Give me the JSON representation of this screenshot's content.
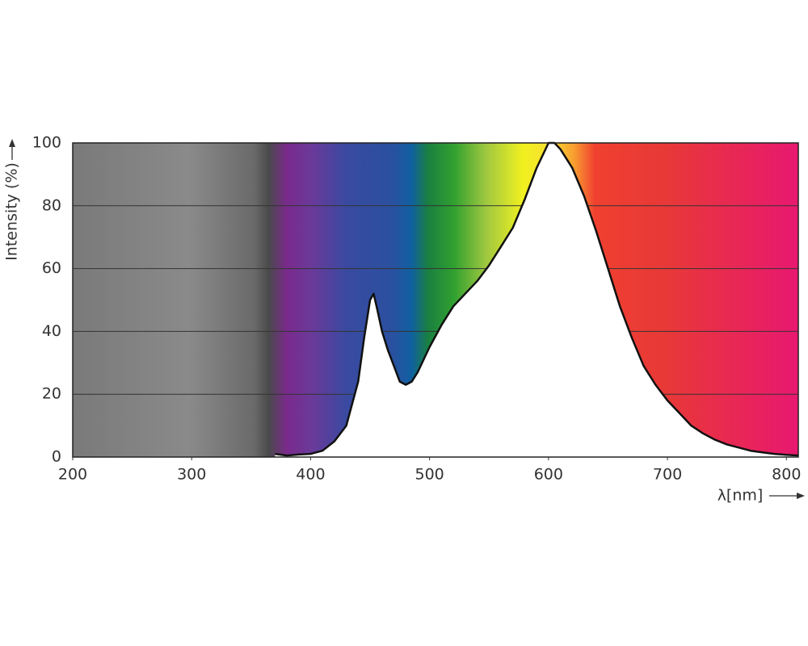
{
  "chart_data": {
    "type": "area",
    "y_label": "Intensity (%)",
    "x_label": "λ[nm]",
    "x": [
      370,
      380,
      390,
      400,
      410,
      420,
      430,
      440,
      445,
      450,
      453,
      456,
      460,
      465,
      470,
      475,
      480,
      485,
      490,
      500,
      510,
      520,
      530,
      540,
      550,
      560,
      570,
      580,
      590,
      600,
      605,
      610,
      620,
      630,
      640,
      650,
      660,
      670,
      680,
      690,
      700,
      710,
      720,
      730,
      740,
      750,
      760,
      770,
      780,
      790,
      800,
      810
    ],
    "series": [
      {
        "name": "Intensity",
        "color": "#111111",
        "values": [
          1,
          0.5,
          0.8,
          1,
          2,
          5,
          10,
          24,
          38,
          50,
          52,
          47,
          40,
          34,
          29,
          24,
          23,
          24,
          27,
          35,
          42,
          48,
          52,
          56,
          61,
          67,
          73,
          82,
          92,
          100,
          100,
          98,
          92,
          83,
          72,
          60,
          48,
          38,
          29,
          23,
          18,
          14,
          10,
          7.5,
          5.5,
          4,
          3,
          2,
          1.5,
          1,
          0.7,
          0.5
        ]
      }
    ],
    "xlim": [
      200,
      810
    ],
    "xticks": [
      200,
      300,
      400,
      500,
      600,
      700,
      800
    ],
    "ylim": [
      0,
      100
    ],
    "yticks": [
      0,
      20,
      40,
      60,
      80,
      100
    ],
    "grid": true,
    "fill": "#ffffff"
  }
}
